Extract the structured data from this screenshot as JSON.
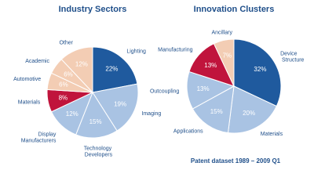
{
  "chart_data": [
    {
      "type": "pie",
      "title": "Industry Sectors",
      "categories": [
        "Lighting",
        "Imaging",
        "Technology Developers",
        "Display Manufacturers",
        "Materials",
        "Automotive",
        "Academic",
        "Other"
      ],
      "values": [
        22,
        19,
        15,
        12,
        8,
        6,
        6,
        12
      ],
      "value_labels": [
        "22%",
        "19%",
        "15%",
        "12%",
        "8%",
        "6%",
        "6%",
        "12%"
      ],
      "colors": [
        "#1f5a9e",
        "#a9c3e3",
        "#a9c3e3",
        "#a9c3e3",
        "#c0143c",
        "#f3cdb4",
        "#f3cdb4",
        "#f3cdb4"
      ]
    },
    {
      "type": "pie",
      "title": "Innovation Clusters",
      "categories": [
        "Device Structure",
        "Materials",
        "Applications",
        "Outcoupling",
        "Manufacturing",
        "Ancillary"
      ],
      "values": [
        32,
        20,
        15,
        13,
        13,
        7
      ],
      "value_labels": [
        "32%",
        "20%",
        "15%",
        "13%",
        "13%",
        "7%"
      ],
      "colors": [
        "#1f5a9e",
        "#a9c3e3",
        "#a9c3e3",
        "#a9c3e3",
        "#c0143c",
        "#f3cdb4"
      ]
    }
  ],
  "footer": "Patent dataset 1989 – 2009 Q1"
}
